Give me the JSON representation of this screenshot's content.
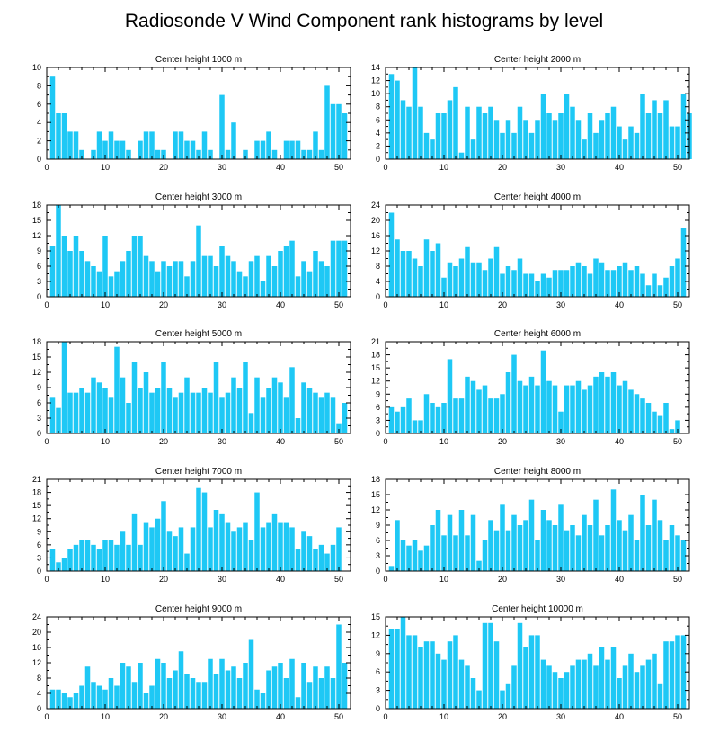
{
  "title": "Radiosonde V Wind Component rank histograms by level",
  "colors": {
    "bar": "#1ec8f5",
    "axis": "#000000",
    "text": "#000000"
  },
  "chart_data": [
    {
      "type": "bar",
      "title": "Center height 1000 m",
      "xlim": [
        0,
        52
      ],
      "ylim": [
        0,
        10
      ],
      "xticks": [
        0,
        10,
        20,
        30,
        40,
        50
      ],
      "yticks": [
        0,
        2,
        4,
        6,
        8,
        10
      ],
      "values": [
        0,
        9,
        5,
        5,
        3,
        3,
        1,
        0,
        1,
        3,
        2,
        3,
        2,
        2,
        1,
        0,
        2,
        3,
        3,
        1,
        1,
        0,
        3,
        3,
        2,
        2,
        1,
        3,
        1,
        0,
        7,
        1,
        4,
        0,
        1,
        0,
        2,
        2,
        3,
        1,
        0,
        2,
        2,
        2,
        1,
        1,
        3,
        1,
        8,
        6,
        6,
        5
      ]
    },
    {
      "type": "bar",
      "title": "Center height 2000 m",
      "xlim": [
        0,
        52
      ],
      "ylim": [
        0,
        14
      ],
      "xticks": [
        0,
        10,
        20,
        30,
        40,
        50
      ],
      "yticks": [
        0,
        2,
        4,
        6,
        8,
        10,
        12,
        14
      ],
      "values": [
        0,
        13,
        12,
        9,
        8,
        14,
        8,
        4,
        3,
        7,
        7,
        9,
        11,
        1,
        8,
        3,
        8,
        7,
        8,
        6,
        4,
        6,
        4,
        8,
        6,
        4,
        6,
        10,
        7,
        6,
        7,
        10,
        8,
        6,
        3,
        7,
        4,
        6,
        7,
        8,
        5,
        3,
        5,
        4,
        10,
        7,
        9,
        7,
        9,
        5,
        5,
        10,
        7
      ]
    },
    {
      "type": "bar",
      "title": "Center height 3000 m",
      "xlim": [
        0,
        52
      ],
      "ylim": [
        0,
        18
      ],
      "xticks": [
        0,
        10,
        20,
        30,
        40,
        50
      ],
      "yticks": [
        0,
        3,
        6,
        9,
        12,
        15,
        18
      ],
      "values": [
        0,
        10,
        18,
        12,
        9,
        12,
        9,
        7,
        6,
        5,
        12,
        4,
        5,
        7,
        9,
        12,
        12,
        8,
        7,
        5,
        7,
        6,
        7,
        7,
        4,
        7,
        14,
        8,
        8,
        6,
        10,
        8,
        7,
        5,
        4,
        7,
        8,
        3,
        8,
        6,
        9,
        10,
        11,
        4,
        7,
        5,
        9,
        7,
        6,
        11,
        11,
        11
      ]
    },
    {
      "type": "bar",
      "title": "Center height 4000 m",
      "xlim": [
        0,
        52
      ],
      "ylim": [
        0,
        24
      ],
      "xticks": [
        0,
        10,
        20,
        30,
        40,
        50
      ],
      "yticks": [
        0,
        4,
        8,
        12,
        16,
        20,
        24
      ],
      "values": [
        0,
        22,
        15,
        12,
        12,
        10,
        8,
        15,
        12,
        14,
        5,
        9,
        8,
        10,
        13,
        9,
        9,
        7,
        10,
        13,
        6,
        8,
        7,
        10,
        6,
        6,
        4,
        6,
        5,
        7,
        7,
        7,
        8,
        9,
        8,
        6,
        10,
        9,
        7,
        7,
        8,
        9,
        7,
        8,
        6,
        3,
        6,
        3,
        5,
        8,
        10,
        18
      ]
    },
    {
      "type": "bar",
      "title": "Center height 5000 m",
      "xlim": [
        0,
        52
      ],
      "ylim": [
        0,
        18
      ],
      "xticks": [
        0,
        10,
        20,
        30,
        40,
        50
      ],
      "yticks": [
        0,
        3,
        6,
        9,
        12,
        15,
        18
      ],
      "values": [
        0,
        7,
        5,
        18,
        8,
        8,
        9,
        8,
        11,
        10,
        9,
        7,
        17,
        11,
        6,
        14,
        9,
        12,
        8,
        9,
        14,
        9,
        7,
        8,
        11,
        8,
        8,
        9,
        8,
        14,
        7,
        8,
        11,
        9,
        14,
        4,
        11,
        7,
        9,
        11,
        10,
        7,
        13,
        3,
        10,
        9,
        8,
        7,
        8,
        7,
        2,
        6
      ]
    },
    {
      "type": "bar",
      "title": "Center height 6000 m",
      "xlim": [
        0,
        52
      ],
      "ylim": [
        0,
        21
      ],
      "xticks": [
        0,
        10,
        20,
        30,
        40,
        50
      ],
      "yticks": [
        0,
        3,
        6,
        9,
        12,
        15,
        18,
        21
      ],
      "values": [
        0,
        6,
        5,
        6,
        8,
        3,
        3,
        9,
        7,
        6,
        7,
        17,
        8,
        8,
        13,
        12,
        10,
        11,
        8,
        8,
        9,
        14,
        18,
        12,
        11,
        13,
        11,
        19,
        12,
        11,
        5,
        11,
        11,
        12,
        10,
        11,
        13,
        14,
        13,
        14,
        11,
        12,
        10,
        9,
        8,
        7,
        5,
        4,
        7,
        1,
        3
      ]
    },
    {
      "type": "bar",
      "title": "Center height 7000 m",
      "xlim": [
        0,
        52
      ],
      "ylim": [
        0,
        21
      ],
      "xticks": [
        0,
        10,
        20,
        30,
        40,
        50
      ],
      "yticks": [
        0,
        3,
        6,
        9,
        12,
        15,
        18,
        21
      ],
      "values": [
        0,
        5,
        2,
        3,
        5,
        6,
        7,
        7,
        6,
        5,
        7,
        7,
        6,
        9,
        6,
        13,
        6,
        11,
        10,
        12,
        16,
        9,
        8,
        10,
        4,
        10,
        19,
        18,
        10,
        14,
        13,
        11,
        9,
        10,
        11,
        7,
        18,
        10,
        11,
        13,
        11,
        11,
        10,
        5,
        9,
        8,
        5,
        6,
        4,
        6,
        10
      ]
    },
    {
      "type": "bar",
      "title": "Center height 8000 m",
      "xlim": [
        0,
        52
      ],
      "ylim": [
        0,
        18
      ],
      "xticks": [
        0,
        10,
        20,
        30,
        40,
        50
      ],
      "yticks": [
        0,
        3,
        6,
        9,
        12,
        15,
        18
      ],
      "values": [
        0,
        1,
        10,
        6,
        5,
        6,
        4,
        5,
        9,
        12,
        7,
        11,
        7,
        12,
        7,
        11,
        2,
        6,
        10,
        8,
        13,
        8,
        11,
        9,
        10,
        14,
        6,
        12,
        10,
        9,
        13,
        8,
        9,
        7,
        11,
        9,
        14,
        7,
        9,
        16,
        10,
        8,
        11,
        6,
        15,
        9,
        14,
        10,
        6,
        9,
        7,
        6
      ]
    },
    {
      "type": "bar",
      "title": "Center height 9000 m",
      "xlim": [
        0,
        52
      ],
      "ylim": [
        0,
        24
      ],
      "xticks": [
        0,
        10,
        20,
        30,
        40,
        50
      ],
      "yticks": [
        0,
        4,
        8,
        12,
        16,
        20,
        24
      ],
      "values": [
        0,
        5,
        5,
        4,
        3,
        4,
        6,
        11,
        7,
        6,
        5,
        8,
        6,
        12,
        11,
        7,
        12,
        4,
        6,
        13,
        12,
        8,
        10,
        15,
        9,
        8,
        7,
        7,
        13,
        9,
        13,
        10,
        11,
        8,
        12,
        18,
        5,
        4,
        10,
        11,
        12,
        8,
        13,
        3,
        12,
        7,
        11,
        8,
        11,
        8,
        22,
        12
      ]
    },
    {
      "type": "bar",
      "title": "Center height 10000 m",
      "xlim": [
        0,
        52
      ],
      "ylim": [
        0,
        15
      ],
      "xticks": [
        0,
        10,
        20,
        30,
        40,
        50
      ],
      "yticks": [
        0,
        3,
        6,
        9,
        12,
        15
      ],
      "values": [
        0,
        13,
        13,
        15,
        12,
        12,
        10,
        11,
        11,
        9,
        8,
        11,
        12,
        8,
        7,
        5,
        3,
        14,
        14,
        11,
        3,
        4,
        7,
        14,
        10,
        12,
        12,
        8,
        7,
        6,
        5,
        6,
        7,
        8,
        8,
        9,
        7,
        10,
        8,
        10,
        5,
        7,
        9,
        6,
        7,
        8,
        9,
        4,
        11,
        11,
        12,
        12
      ]
    }
  ]
}
